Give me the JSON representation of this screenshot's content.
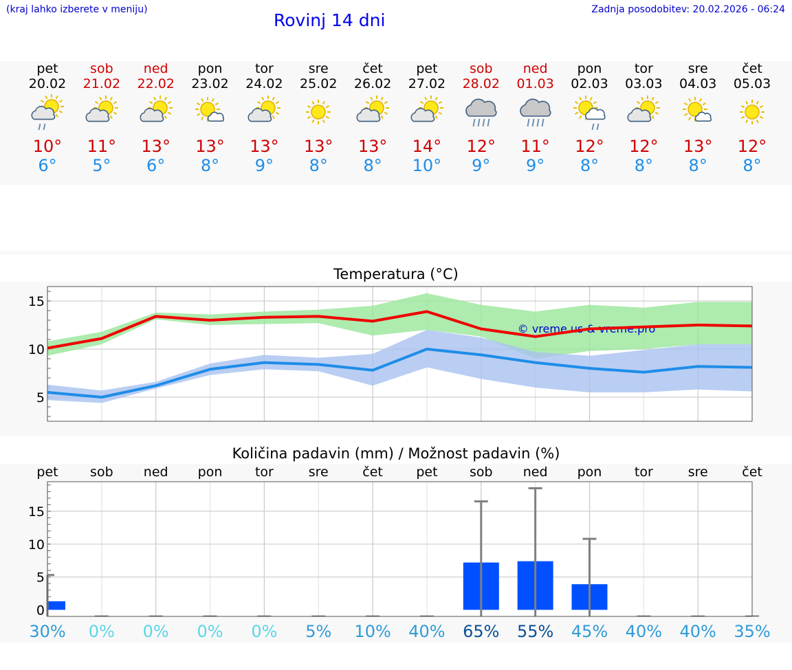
{
  "header": {
    "hint": "(kraj lahko izberete v meniju)",
    "title": "Rovinj 14 dni",
    "update": "Zadnja posodobitev: 20.02.2026 - 06:24"
  },
  "days": [
    {
      "name": "pet",
      "date": "20.02",
      "weekend": false,
      "icon": "sun-cloud-drizzle-icon",
      "tmax": "10°",
      "tmin": "6°"
    },
    {
      "name": "sob",
      "date": "21.02",
      "weekend": true,
      "icon": "sun-cloud-icon",
      "tmax": "11°",
      "tmin": "5°"
    },
    {
      "name": "ned",
      "date": "22.02",
      "weekend": true,
      "icon": "sun-cloud-icon",
      "tmax": "13°",
      "tmin": "6°"
    },
    {
      "name": "pon",
      "date": "23.02",
      "weekend": false,
      "icon": "sun-small-cloud-icon",
      "tmax": "13°",
      "tmin": "8°"
    },
    {
      "name": "tor",
      "date": "24.02",
      "weekend": false,
      "icon": "sun-cloud-icon",
      "tmax": "13°",
      "tmin": "9°"
    },
    {
      "name": "sre",
      "date": "25.02",
      "weekend": false,
      "icon": "sun-icon",
      "tmax": "13°",
      "tmin": "8°"
    },
    {
      "name": "čet",
      "date": "26.02",
      "weekend": false,
      "icon": "sun-cloud-icon",
      "tmax": "13°",
      "tmin": "8°"
    },
    {
      "name": "pet",
      "date": "27.02",
      "weekend": false,
      "icon": "sun-cloud-icon",
      "tmax": "14°",
      "tmin": "10°"
    },
    {
      "name": "sob",
      "date": "28.02",
      "weekend": true,
      "icon": "cloud-rain-icon",
      "tmax": "12°",
      "tmin": "9°"
    },
    {
      "name": "ned",
      "date": "01.03",
      "weekend": true,
      "icon": "cloud-rain-icon",
      "tmax": "11°",
      "tmin": "9°"
    },
    {
      "name": "pon",
      "date": "02.03",
      "weekend": false,
      "icon": "sun-cloud-rain-icon",
      "tmax": "12°",
      "tmin": "8°"
    },
    {
      "name": "tor",
      "date": "03.03",
      "weekend": false,
      "icon": "sun-cloud-icon",
      "tmax": "12°",
      "tmin": "8°"
    },
    {
      "name": "sre",
      "date": "04.03",
      "weekend": false,
      "icon": "sun-small-cloud-icon",
      "tmax": "13°",
      "tmin": "8°"
    },
    {
      "name": "čet",
      "date": "05.03",
      "weekend": false,
      "icon": "sun-icon",
      "tmax": "12°",
      "tmin": "8°"
    }
  ],
  "chart_data": [
    {
      "type": "line",
      "title": "Temperatura (°C)",
      "ylim": [
        2.5,
        16.5
      ],
      "yticks": [
        "15",
        "10",
        "5"
      ],
      "ytick_values": [
        15,
        10,
        5
      ],
      "watermark": "© vreme.us & vreme.pro",
      "series": [
        {
          "name": "max",
          "color": "#ee0000",
          "values": [
            10.1,
            11.1,
            13.4,
            13.0,
            13.3,
            13.4,
            12.9,
            13.9,
            12.1,
            11.3,
            12.1,
            12.3,
            12.5,
            12.4
          ],
          "band_low": [
            9.3,
            10.5,
            13.1,
            12.5,
            12.6,
            12.7,
            11.4,
            12.0,
            11.3,
            9.0,
            9.8,
            10.0,
            10.5,
            10.5
          ],
          "band_high": [
            10.8,
            11.8,
            13.8,
            13.6,
            13.9,
            14.1,
            14.5,
            15.8,
            14.6,
            13.9,
            14.6,
            14.3,
            14.9,
            14.9
          ],
          "band_color": "#99e69a"
        },
        {
          "name": "min",
          "color": "#1e8de8",
          "values": [
            5.5,
            5.0,
            6.2,
            7.9,
            8.6,
            8.4,
            7.8,
            10.0,
            9.4,
            8.6,
            8.0,
            7.6,
            8.2,
            8.1
          ],
          "band_low": [
            4.7,
            4.4,
            5.9,
            7.3,
            7.9,
            7.7,
            6.2,
            8.1,
            6.9,
            6.0,
            5.5,
            5.5,
            5.8,
            5.6
          ],
          "band_high": [
            6.3,
            5.7,
            6.6,
            8.5,
            9.4,
            9.1,
            9.5,
            12.0,
            11.2,
            9.7,
            9.3,
            9.9,
            10.5,
            10.5
          ],
          "band_color": "#a9c2f0"
        }
      ]
    },
    {
      "type": "bar",
      "title": "Količina padavin (mm) / Možnost padavin (%)",
      "ylim": [
        -1,
        19.5
      ],
      "yticks": [
        "15",
        "10",
        "5",
        "0"
      ],
      "ytick_values": [
        15,
        10,
        5,
        0
      ],
      "categories": [
        "pet",
        "sob",
        "ned",
        "pon",
        "tor",
        "sre",
        "čet",
        "pet",
        "sob",
        "ned",
        "pon",
        "tor",
        "sre",
        "čet"
      ],
      "values": [
        1.3,
        0,
        0,
        0,
        0,
        0,
        0,
        0,
        7.2,
        7.4,
        3.9,
        0,
        0,
        0
      ],
      "error_high": [
        5.3,
        0,
        0,
        0,
        0,
        0,
        0,
        0,
        16.5,
        18.5,
        10.8,
        0,
        0,
        0
      ],
      "probability": [
        "30%",
        "0%",
        "0%",
        "0%",
        "0%",
        "5%",
        "10%",
        "40%",
        "65%",
        "55%",
        "45%",
        "40%",
        "40%",
        "35%"
      ],
      "probability_colors": [
        "#2f9bd8",
        "#5ad6e8",
        "#5ad6e8",
        "#5ad6e8",
        "#5ad6e8",
        "#2f9bd8",
        "#2f9bd8",
        "#2f9bd8",
        "#0a4f96",
        "#0a4f96",
        "#2f9bd8",
        "#2f9bd8",
        "#2f9bd8",
        "#2f9bd8"
      ],
      "bar_color": "#0050ff",
      "error_color": "#808080"
    }
  ]
}
